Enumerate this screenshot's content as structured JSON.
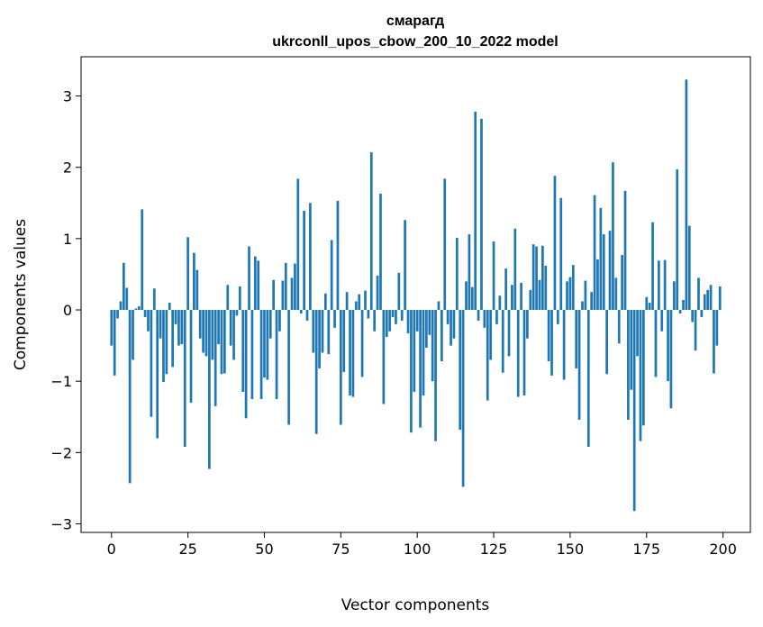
{
  "chart_data": {
    "type": "bar",
    "title": "смарагд",
    "subtitle": "ukrconll_upos_cbow_200_10_2022 model",
    "xlabel": "Vector components",
    "ylabel": "Components values",
    "xlim": [
      -9.95,
      208.95
    ],
    "ylim": [
      -3.12,
      3.55
    ],
    "xticks": [
      0,
      25,
      50,
      75,
      100,
      125,
      150,
      175,
      200
    ],
    "yticks": [
      -3,
      -2,
      -1,
      0,
      1,
      2,
      3
    ],
    "xtick_labels": [
      "0",
      "25",
      "50",
      "75",
      "100",
      "125",
      "150",
      "175",
      "200"
    ],
    "ytick_labels": [
      "−3",
      "−2",
      "−1",
      "0",
      "1",
      "2",
      "3"
    ],
    "grid": false,
    "bar_color": "#1f77b4",
    "values": [
      -0.5,
      -0.92,
      -0.12,
      0.12,
      0.66,
      0.31,
      -2.43,
      -0.7,
      0.02,
      0.05,
      1.41,
      -0.1,
      -0.3,
      -1.5,
      0.3,
      -1.8,
      -0.4,
      -1.01,
      -0.9,
      0.1,
      -0.8,
      -0.2,
      -0.5,
      -0.48,
      -1.92,
      1.02,
      -1.3,
      0.8,
      0.56,
      -0.4,
      -0.6,
      -0.65,
      -2.23,
      -0.7,
      -1.35,
      -0.48,
      -0.9,
      -0.89,
      0.35,
      -0.5,
      -0.7,
      -0.08,
      0.33,
      -1.15,
      -1.52,
      0.89,
      -1.25,
      0.75,
      0.69,
      -1.25,
      -0.95,
      -0.98,
      -0.4,
      0.42,
      -1.25,
      -0.3,
      0.41,
      0.66,
      -1.61,
      0.45,
      0.65,
      1.84,
      -0.05,
      1.39,
      -0.15,
      1.5,
      -0.6,
      -1.74,
      -0.82,
      -0.6,
      0.23,
      -0.62,
      0.98,
      -0.25,
      1.53,
      -1.61,
      -0.87,
      0.25,
      -1.2,
      -1.22,
      0.12,
      0.22,
      -0.94,
      0.27,
      -0.12,
      2.21,
      -0.3,
      0.48,
      1.63,
      -1.32,
      -0.38,
      -0.3,
      -0.1,
      -0.2,
      0.52,
      -0.15,
      1.26,
      -0.33,
      -1.72,
      -1.15,
      -0.3,
      -1.65,
      -1.2,
      -0.53,
      -0.35,
      -1.0,
      -1.84,
      0.12,
      -0.72,
      1.84,
      -0.2,
      -0.5,
      -0.4,
      1.01,
      -1.68,
      -2.48,
      0.4,
      1.06,
      0.32,
      2.78,
      -0.15,
      2.68,
      -0.25,
      -1.27,
      -0.7,
      0.96,
      -0.2,
      0.2,
      -0.88,
      0.58,
      -0.65,
      0.35,
      1.14,
      -1.22,
      0.38,
      -1.2,
      -0.4,
      0.28,
      0.92,
      0.89,
      0.42,
      0.9,
      0.62,
      -0.72,
      -0.92,
      1.88,
      -0.2,
      1.57,
      -0.98,
      0.4,
      0.46,
      0.63,
      -0.82,
      -1.54,
      0.12,
      0.41,
      -1.92,
      0.25,
      1.61,
      0.71,
      1.43,
      1.06,
      -0.9,
      1.11,
      2.07,
      0.45,
      -0.47,
      0.77,
      1.67,
      -1.54,
      -1.12,
      -2.82,
      -0.65,
      -1.84,
      -1.62,
      0.18,
      0.1,
      1.23,
      -0.94,
      0.69,
      -0.3,
      0.7,
      -1.0,
      -1.38,
      0.4,
      1.97,
      -0.05,
      0.14,
      3.23,
      1.18,
      -0.17,
      -0.57,
      0.45,
      -0.1,
      0.22,
      0.28,
      0.35,
      -0.89,
      -0.5,
      0.33
    ]
  }
}
